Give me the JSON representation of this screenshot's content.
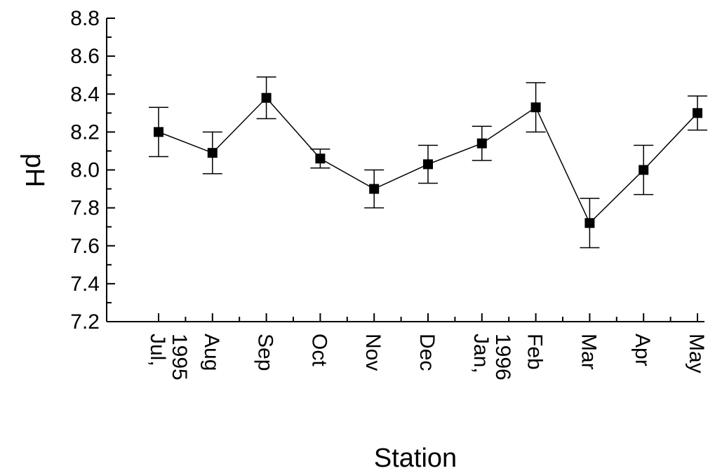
{
  "chart_data": {
    "type": "line",
    "xlabel": "Station",
    "ylabel": "pH",
    "ylim": [
      7.2,
      8.8
    ],
    "yticks": [
      "7.2",
      "7.4",
      "7.6",
      "7.8",
      "8.0",
      "8.2",
      "8.4",
      "8.6",
      "8.8"
    ],
    "categories": [
      [
        "Jul,",
        "1995"
      ],
      [
        "Aug"
      ],
      [
        "Sep"
      ],
      [
        "Oct"
      ],
      [
        "Nov"
      ],
      [
        "Dec"
      ],
      [
        "Jan,",
        "1996"
      ],
      [
        "Feb"
      ],
      [
        "Mar"
      ],
      [
        "Apr"
      ],
      [
        "May"
      ]
    ],
    "series": [
      {
        "values": [
          8.2,
          8.09,
          8.38,
          8.06,
          7.9,
          8.03,
          8.14,
          8.33,
          7.72,
          8.0,
          8.3
        ],
        "err_low": [
          8.07,
          7.98,
          8.27,
          8.01,
          7.8,
          7.93,
          8.05,
          8.2,
          7.59,
          7.87,
          8.21
        ],
        "err_high": [
          8.33,
          8.2,
          8.49,
          8.11,
          8.0,
          8.13,
          8.23,
          8.46,
          7.85,
          8.13,
          8.39
        ],
        "marker": "square",
        "color": "#000000"
      }
    ],
    "grid": false,
    "legend": "none"
  }
}
